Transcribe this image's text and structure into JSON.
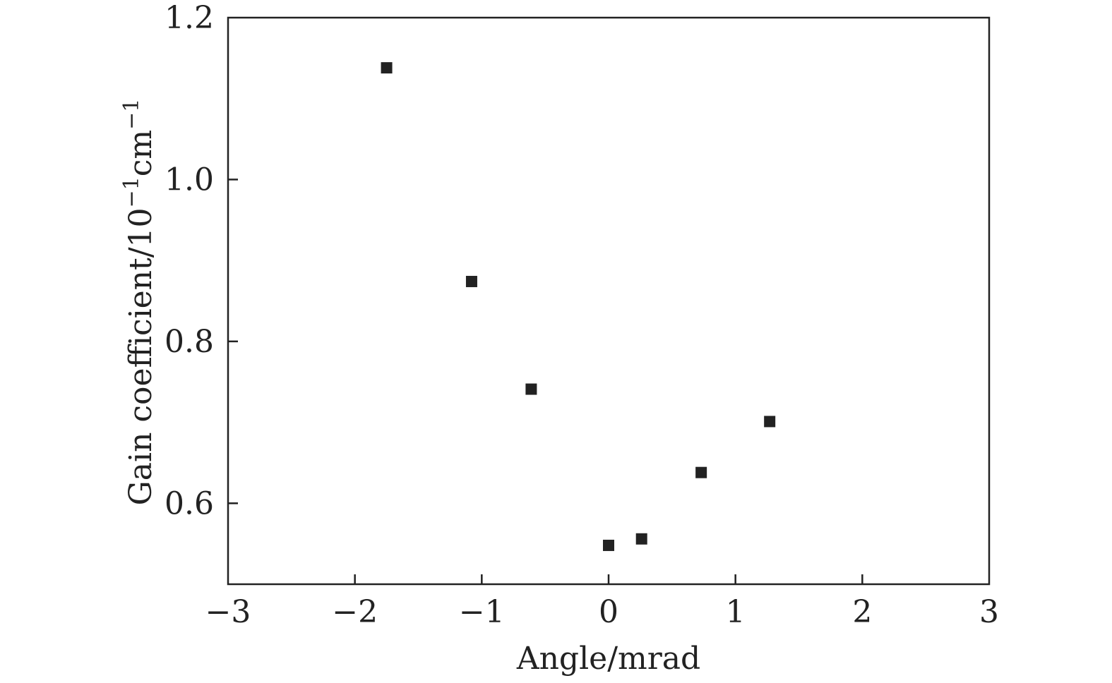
{
  "chart_data": {
    "type": "scatter",
    "title": "",
    "xlabel": "Angle/mrad",
    "ylabel": {
      "base": "Gain coefficient/10",
      "exp1": "−1",
      "unit": "cm",
      "exp2": "−1"
    },
    "xlim": [
      -3,
      3
    ],
    "ylim": [
      0.5,
      1.2
    ],
    "x_ticks": [
      -3,
      -2,
      -1,
      0,
      1,
      2,
      3
    ],
    "x_tick_labels": [
      "−3",
      "−2",
      "−1",
      "0",
      "1",
      "2",
      "3"
    ],
    "y_ticks": [
      0.6,
      0.8,
      1.0,
      1.2
    ],
    "y_tick_labels": [
      "0.6",
      "0.8",
      "1.0",
      "1.2"
    ],
    "grid": false,
    "marker": "square",
    "marker_color": "#222222",
    "series": [
      {
        "points": [
          {
            "x": -1.75,
            "y": 1.138
          },
          {
            "x": -1.08,
            "y": 0.874
          },
          {
            "x": -0.61,
            "y": 0.741
          },
          {
            "x": 0.0,
            "y": 0.548
          },
          {
            "x": 0.26,
            "y": 0.556
          },
          {
            "x": 0.73,
            "y": 0.638
          },
          {
            "x": 1.27,
            "y": 0.701
          }
        ]
      }
    ]
  }
}
